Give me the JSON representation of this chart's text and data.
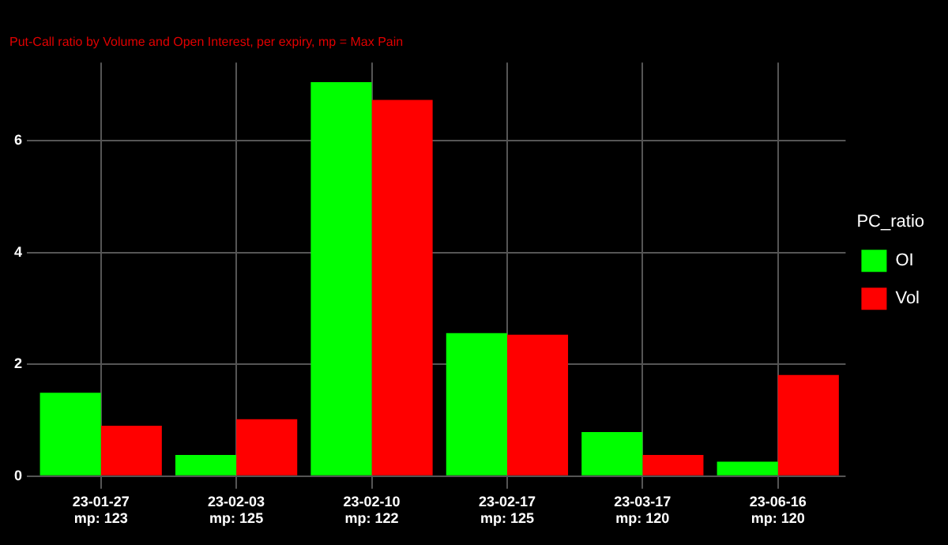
{
  "chart_data": {
    "type": "bar",
    "subtitle": "Put-Call ratio by Volume and Open Interest, per expiry, mp = Max Pain",
    "legend_title": "PC_ratio",
    "categories": [
      "23-01-27\nmp: 123",
      "23-02-03\nmp: 125",
      "23-02-10\nmp: 122",
      "23-02-17\nmp: 125",
      "23-03-17\nmp: 120",
      "23-06-16\nmp: 120"
    ],
    "series": [
      {
        "name": "OI",
        "color": "#00ff00",
        "values": [
          1.49,
          0.38,
          7.05,
          2.56,
          0.79,
          0.26
        ]
      },
      {
        "name": "Vol",
        "color": "#ff0000",
        "values": [
          0.9,
          1.02,
          6.73,
          2.53,
          0.38,
          1.81
        ]
      }
    ],
    "ylim": [
      0,
      7.4
    ],
    "yticks": [
      0,
      2,
      4,
      6
    ],
    "grid": true,
    "legend": "right"
  }
}
